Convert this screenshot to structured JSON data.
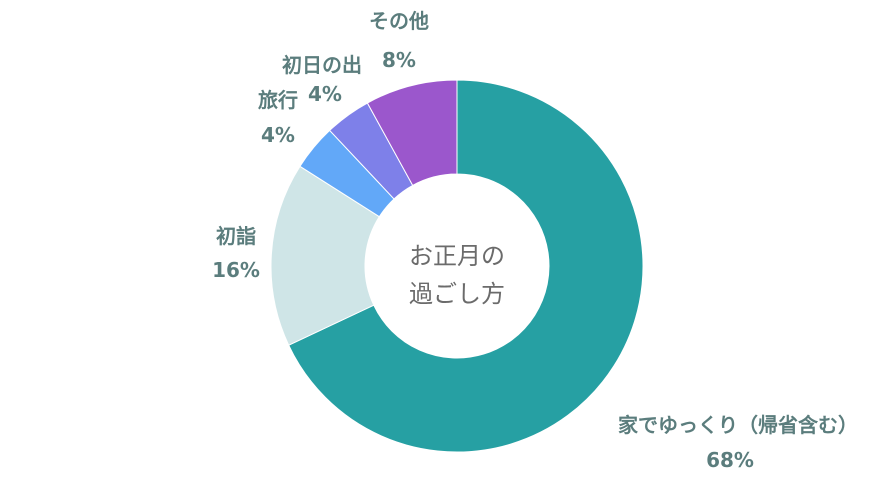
{
  "chart_data": {
    "type": "pie",
    "donut": true,
    "center_label": [
      "お正月の",
      "過ごし方"
    ],
    "slices": [
      {
        "label": "家でゆっくり（帰省含む）",
        "value": 68,
        "value_label": "68%",
        "color": "#26a0a3"
      },
      {
        "label": "初詣",
        "value": 16,
        "value_label": "16%",
        "color": "#cfe5e7"
      },
      {
        "label": "旅行",
        "value": 4,
        "value_label": "4%",
        "color": "#62a8f8"
      },
      {
        "label": "初日の出",
        "value": 4,
        "value_label": "4%",
        "color": "#7e80e9"
      },
      {
        "label": "その他",
        "value": 8,
        "value_label": "8%",
        "color": "#9b57cc"
      }
    ]
  }
}
